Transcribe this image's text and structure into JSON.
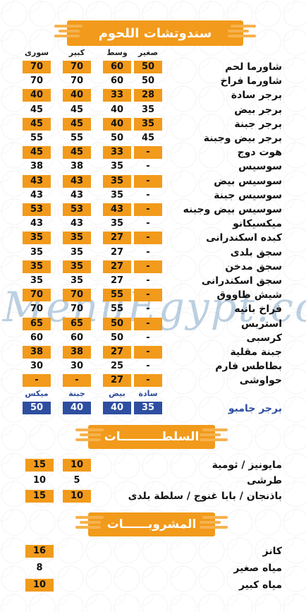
{
  "watermark": "MenuEgypt.com",
  "sandwiches": {
    "title": "سندوتشات اللحوم",
    "columns": [
      "صغير",
      "وسط",
      "كبير",
      "سورى"
    ],
    "items": [
      {
        "name": "شاورما لحم",
        "p": [
          "50",
          "60",
          "70",
          "70"
        ]
      },
      {
        "name": "شاورما فراخ",
        "p": [
          "50",
          "60",
          "70",
          "70"
        ]
      },
      {
        "name": "برجر سادة",
        "p": [
          "28",
          "33",
          "40",
          "40"
        ]
      },
      {
        "name": "برجر بيض",
        "p": [
          "35",
          "40",
          "45",
          "45"
        ]
      },
      {
        "name": "برجر جبنة",
        "p": [
          "35",
          "40",
          "45",
          "45"
        ]
      },
      {
        "name": "برجر بيض وجبنة",
        "p": [
          "45",
          "50",
          "55",
          "55"
        ]
      },
      {
        "name": "هوت دوج",
        "p": [
          "-",
          "33",
          "45",
          "45"
        ]
      },
      {
        "name": "سوسيس",
        "p": [
          "-",
          "35",
          "38",
          "38"
        ]
      },
      {
        "name": "سوسيس بيض",
        "p": [
          "-",
          "35",
          "43",
          "43"
        ]
      },
      {
        "name": "سوسيس جبنة",
        "p": [
          "-",
          "35",
          "43",
          "43"
        ]
      },
      {
        "name": "سوسيس بيض وجبنه",
        "p": [
          "-",
          "43",
          "53",
          "53"
        ]
      },
      {
        "name": "ميكسيكانو",
        "p": [
          "-",
          "35",
          "43",
          "43"
        ]
      },
      {
        "name": "كبده اسكندرانى",
        "p": [
          "-",
          "27",
          "35",
          "35"
        ]
      },
      {
        "name": "سجق بلدى",
        "p": [
          "-",
          "27",
          "35",
          "35"
        ]
      },
      {
        "name": "سجق مدخن",
        "p": [
          "-",
          "27",
          "35",
          "35"
        ]
      },
      {
        "name": "سجق اسكندرانى",
        "p": [
          "-",
          "27",
          "35",
          "35"
        ]
      },
      {
        "name": "شيش طاووق",
        "p": [
          "-",
          "55",
          "70",
          "70"
        ]
      },
      {
        "name": "فراخ بانيه",
        "p": [
          "-",
          "55",
          "70",
          "70"
        ]
      },
      {
        "name": "استربس",
        "p": [
          "-",
          "50",
          "65",
          "65"
        ]
      },
      {
        "name": "كرسبى",
        "p": [
          "-",
          "50",
          "60",
          "60"
        ]
      },
      {
        "name": "جبنة مقلية",
        "p": [
          "-",
          "27",
          "38",
          "38"
        ]
      },
      {
        "name": "بطاطس فارم",
        "p": [
          "-",
          "25",
          "30",
          "30"
        ]
      },
      {
        "name": "حواوشى",
        "p": [
          "-",
          "27",
          "-",
          "-"
        ]
      }
    ]
  },
  "jumbo": {
    "name": "برجر جامبو",
    "columns": [
      "سادة",
      "بيض",
      "جبنة",
      "ميكس"
    ],
    "prices": [
      "35",
      "40",
      "40",
      "50"
    ]
  },
  "salads": {
    "title": "السلطــــــــــات",
    "items": [
      {
        "name": "مايونيز / ثومية",
        "p": [
          "10",
          "15"
        ]
      },
      {
        "name": "طرشى",
        "p": [
          "5",
          "10"
        ]
      },
      {
        "name": "باذنجان / بابا غنوج / سلطة بلدى",
        "p": [
          "10",
          "15"
        ]
      }
    ]
  },
  "drinks": {
    "title": "المشروبــــــات",
    "items": [
      {
        "name": "كانز",
        "p": "16"
      },
      {
        "name": "مياه صغير",
        "p": "8"
      },
      {
        "name": "مياه كبير",
        "p": "10"
      }
    ]
  },
  "colors": {
    "accent": "#f29a1b",
    "blue": "#2e4ea0"
  }
}
